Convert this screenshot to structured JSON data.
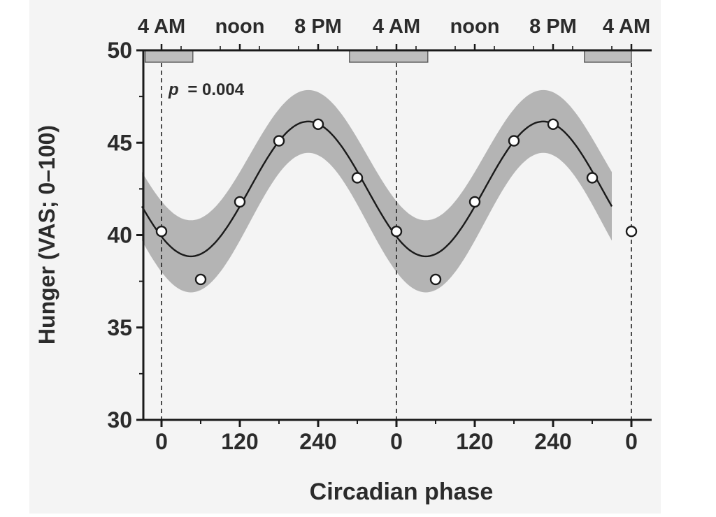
{
  "chart_data": {
    "type": "line",
    "title": "",
    "xlabel": "Circadian phase",
    "ylabel": "Hunger (VAS; 0–100)",
    "annotation": "p = 0.004",
    "annotation_symbol": "p",
    "annotation_value": "= 0.004",
    "x_range": [
      -30,
      690
    ],
    "ylim": [
      30,
      50
    ],
    "y_ticks": [
      30,
      35,
      40,
      45,
      50
    ],
    "x_ticks": [
      {
        "x": 0,
        "label": "0"
      },
      {
        "x": 120,
        "label": "120"
      },
      {
        "x": 240,
        "label": "240"
      },
      {
        "x": 360,
        "label": "0"
      },
      {
        "x": 480,
        "label": "120"
      },
      {
        "x": 600,
        "label": "240"
      },
      {
        "x": 720,
        "label": "0"
      }
    ],
    "top_ticks": [
      {
        "x": 0,
        "label": "4 AM"
      },
      {
        "x": 120,
        "label": "noon"
      },
      {
        "x": 240,
        "label": "8 PM"
      },
      {
        "x": 360,
        "label": "4 AM"
      },
      {
        "x": 480,
        "label": "noon"
      },
      {
        "x": 600,
        "label": "8 PM"
      },
      {
        "x": 720,
        "label": "4 AM"
      }
    ],
    "sleep_periods": [
      [
        -25,
        48
      ],
      [
        288,
        408
      ],
      [
        648,
        720
      ]
    ],
    "phase_reference_lines": [
      0,
      360,
      720
    ],
    "grid": false,
    "series": [
      {
        "kind": "points",
        "x": [
          0,
          60,
          120,
          180,
          240,
          300,
          360,
          420,
          480,
          540,
          600,
          660,
          720
        ],
        "y": [
          40.2,
          37.6,
          41.8,
          45.1,
          46.0,
          43.1,
          40.2,
          37.6,
          41.8,
          45.1,
          46.0,
          43.1,
          40.2
        ]
      },
      {
        "kind": "cosinor_fit",
        "mesor": 42.5,
        "amplitude": 3.65,
        "acrophase_deg": 225,
        "period_deg": 360,
        "band_half_width": [
          1.7,
          1.95
        ]
      }
    ],
    "colors": {
      "band": "#b4b4b4",
      "background": "#f4f4f4",
      "line": "#1a1a1a",
      "sleep_bar": "#bdbdbd"
    }
  }
}
